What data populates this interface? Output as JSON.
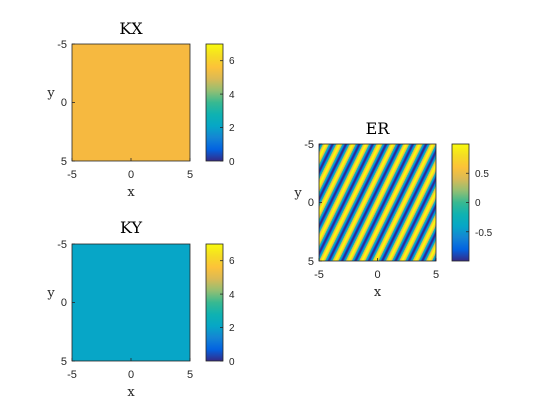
{
  "chart_data": [
    {
      "type": "heatmap",
      "title": "KX",
      "xlabel": "x",
      "ylabel": "y",
      "xlim": [
        -5,
        5
      ],
      "ylim": [
        -5,
        5
      ],
      "y_axis_direction": "down",
      "xticks": [
        "-5",
        "0",
        "5"
      ],
      "yticks": [
        "-5",
        "0",
        "5"
      ],
      "field": "constant",
      "value": 5.5,
      "clim": [
        0,
        7
      ],
      "colorbar_ticks": [
        "0",
        "2",
        "4",
        "6"
      ],
      "colorbar_tick_values": [
        0,
        2,
        4,
        6
      ],
      "colormap": "parula",
      "fill_color": "#f6b940"
    },
    {
      "type": "heatmap",
      "title": "KY",
      "xlabel": "x",
      "ylabel": "y",
      "xlim": [
        -5,
        5
      ],
      "ylim": [
        -5,
        5
      ],
      "y_axis_direction": "down",
      "xticks": [
        "-5",
        "0",
        "5"
      ],
      "yticks": [
        "-5",
        "0",
        "5"
      ],
      "field": "constant",
      "value": 2.7,
      "clim": [
        0,
        7
      ],
      "colorbar_ticks": [
        "0",
        "2",
        "4",
        "6"
      ],
      "colorbar_tick_values": [
        0,
        2,
        4,
        6
      ],
      "colormap": "parula",
      "fill_color": "#07a6c7"
    },
    {
      "type": "heatmap",
      "title": "ER",
      "xlabel": "x",
      "ylabel": "y",
      "xlim": [
        -5,
        5
      ],
      "ylim": [
        -5,
        5
      ],
      "y_axis_direction": "down",
      "xticks": [
        "-5",
        "0",
        "5"
      ],
      "yticks": [
        "-5",
        "0",
        "5"
      ],
      "field": "cos(KX*x + KY*y)",
      "clim": [
        -1,
        1
      ],
      "colorbar_ticks": [
        "0.5",
        "0",
        "-0.5"
      ],
      "colorbar_tick_values": [
        0.5,
        0,
        -0.5
      ],
      "colormap": "parula"
    }
  ]
}
